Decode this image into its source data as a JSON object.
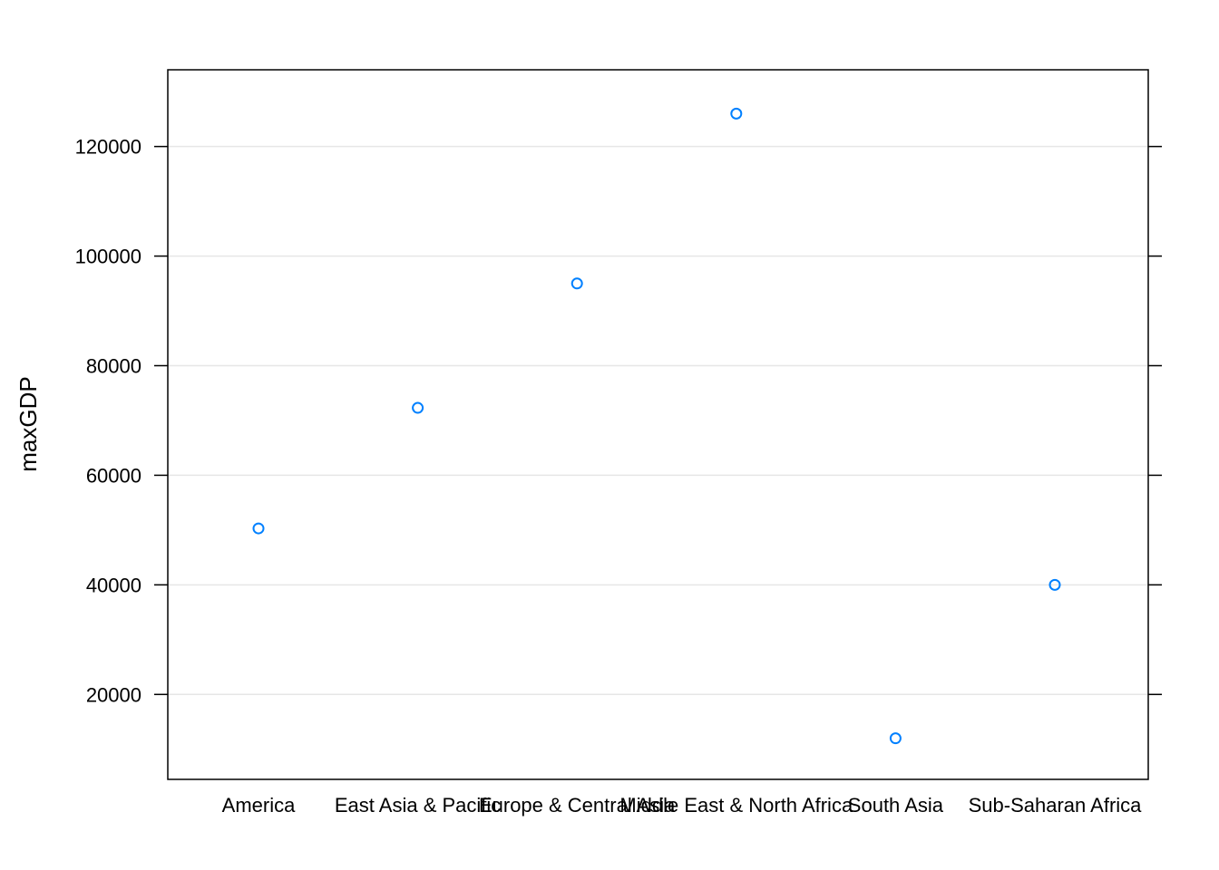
{
  "chart_data": {
    "type": "scatter",
    "title": "",
    "xlabel": "",
    "ylabel": "maxGDP",
    "categories": [
      "America",
      "East Asia & Pacific",
      "Europe & Central Asia",
      "Middle East & North Africa",
      "South Asia",
      "Sub-Saharan Africa"
    ],
    "values": [
      50300,
      72300,
      95000,
      126000,
      12000,
      40000
    ],
    "ylim": [
      4500,
      134000
    ],
    "yticks": [
      20000,
      40000,
      60000,
      80000,
      100000,
      120000
    ],
    "ytick_labels": [
      "20000",
      "40000",
      "60000",
      "80000",
      "100000",
      "120000"
    ],
    "grid": "horizontal",
    "legend": "none",
    "colors": {
      "point": "#0080ff",
      "grid": "#e6e6e6",
      "frame": "#000000"
    }
  }
}
